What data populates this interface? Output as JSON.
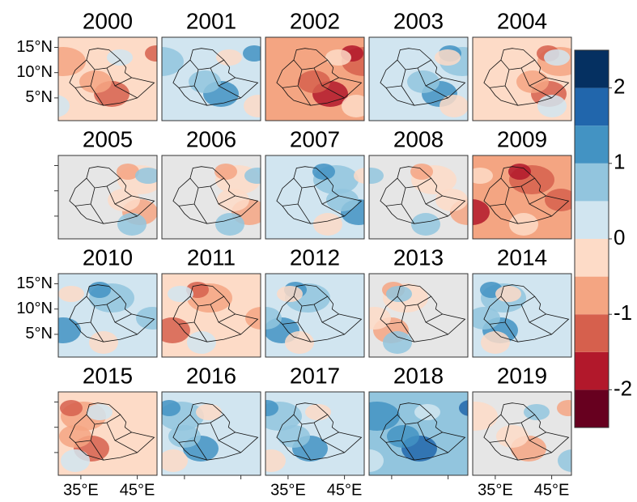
{
  "maps": {
    "titles": [
      "2000",
      "2001",
      "2002",
      "2003",
      "2004",
      "2005",
      "2006",
      "2007",
      "2008",
      "2009",
      "2010",
      "2011",
      "2012",
      "2013",
      "2014",
      "2015",
      "2016",
      "2017",
      "2018",
      "2019"
    ],
    "xlim": [
      31,
      48.5
    ],
    "ylim": [
      0.5,
      17
    ],
    "xticks": [
      {
        "value": 35,
        "label": "35°E"
      },
      {
        "value": 45,
        "label": "45°E"
      }
    ],
    "yticks": [
      {
        "value": 5,
        "label": "5°N"
      },
      {
        "value": 10,
        "label": "10°N"
      },
      {
        "value": 15,
        "label": "15°N"
      }
    ]
  },
  "colorbar": {
    "range": [
      -2.5,
      2.5
    ],
    "ticks": [
      -2,
      -1,
      0,
      1,
      2
    ],
    "colors": [
      "#67001f",
      "#b2182b",
      "#d6604d",
      "#f4a582",
      "#fddbc7",
      "#d1e5f0",
      "#92c5de",
      "#4393c3",
      "#2166ac",
      "#053061"
    ]
  }
}
